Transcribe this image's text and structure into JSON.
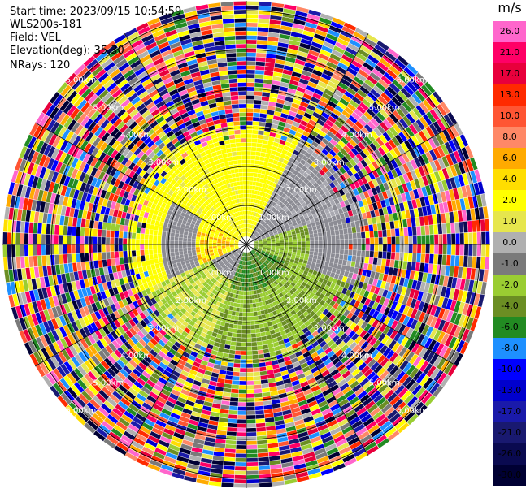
{
  "header": {
    "start_time": "Start time: 2023/09/15 10:54:59",
    "instrument": "WLS200s-181",
    "field": "Field: VEL",
    "elevation": "Elevation(deg): 35.30",
    "nrays": "NRays: 120"
  },
  "colorbar": {
    "unit": "m/s",
    "ticks": [
      "26.0",
      "21.0",
      "17.0",
      "13.0",
      "10.0",
      "8.0",
      "6.0",
      "4.0",
      "2.0",
      "1.0",
      "0.0",
      "-1.0",
      "-2.0",
      "-4.0",
      "-6.0",
      "-8.0",
      "-10.0",
      "-13.0",
      "-17.0",
      "-21.0",
      "-26.0",
      "-30.0"
    ],
    "colors": [
      "#ff66cc",
      "#ff0066",
      "#e8003c",
      "#ff2a00",
      "#ff5533",
      "#ff8866",
      "#ffaa00",
      "#ffdd00",
      "#ffff00",
      "#e6e64d",
      "#b0b0b0",
      "#7a7a7a",
      "#9acd32",
      "#6b8e23",
      "#228b22",
      "#1e90ff",
      "#0000ff",
      "#0000cd",
      "#1a1aaa",
      "#191970",
      "#0a0a50",
      "#000033"
    ]
  },
  "range_labels": [
    "1.00km",
    "2.00km",
    "3.00km",
    "4.00km",
    "5.00km",
    "6.00km"
  ],
  "chart_data": {
    "type": "heatmap",
    "title": "",
    "field": "VEL",
    "unit": "m/s",
    "nrays": 120,
    "elevation_deg": 35.3,
    "colorbar_range": [
      -30.0,
      26.0
    ],
    "range_rings_km": [
      1,
      2,
      3,
      4,
      5,
      6
    ],
    "pattern": "Inner ~2.5 km: positive radial velocity (yellow, 2 to 4 m/s) to the north/west, near 0 m/s (grey) in the northeast and southwest, negative (olive/green, -2 to -6 m/s) to the south/east; beyond ~3 km mostly noisy values spanning the full color range."
  }
}
